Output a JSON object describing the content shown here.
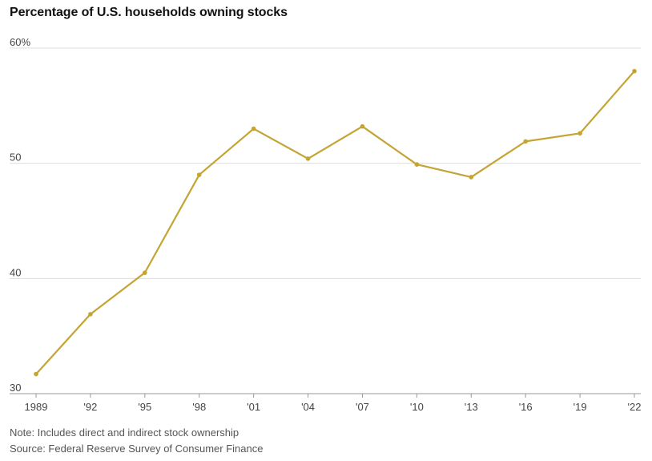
{
  "chart_data": {
    "type": "line",
    "title": "Percentage of U.S. households owning stocks",
    "x": [
      "1989",
      "'92",
      "'95",
      "'98",
      "'01",
      "'04",
      "'07",
      "'10",
      "'13",
      "'16",
      "'19",
      "'22"
    ],
    "series": [
      {
        "name": "Households owning stocks (%)",
        "values": [
          31.7,
          36.9,
          40.5,
          49.0,
          53.0,
          50.4,
          53.2,
          49.9,
          48.8,
          51.9,
          52.6,
          58.0
        ]
      }
    ],
    "yticks": [
      "30",
      "40",
      "50",
      "60%"
    ],
    "ytick_values": [
      30,
      40,
      50,
      60
    ],
    "ylim": [
      30,
      60
    ],
    "color": "#c4a432",
    "gridColor": "#dddddd",
    "note": "Note: Includes direct and indirect stock ownership",
    "source": "Source: Federal Reserve Survey of Consumer Finance"
  }
}
